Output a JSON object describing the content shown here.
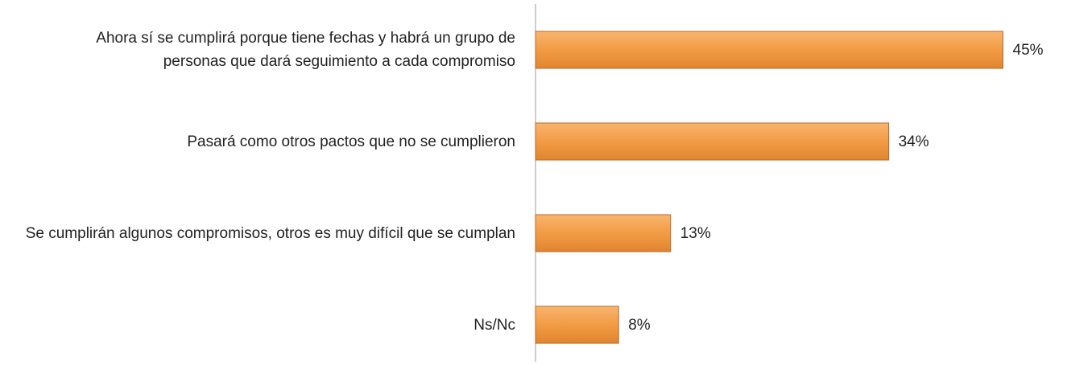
{
  "chart_data": {
    "type": "bar",
    "orientation": "horizontal",
    "categories": [
      "Ahora sí se cumplirá porque tiene fechas y habrá un grupo de personas que dará seguimiento a cada compromiso",
      "Pasará como otros pactos que no se cumplieron",
      "Se cumplirán algunos compromisos, otros es muy difícil que se cumplan",
      "Ns/Nc"
    ],
    "values": [
      45,
      34,
      13,
      8
    ],
    "value_labels": [
      "45%",
      "34%",
      "13%",
      "8%"
    ],
    "color": "#f29b45"
  }
}
